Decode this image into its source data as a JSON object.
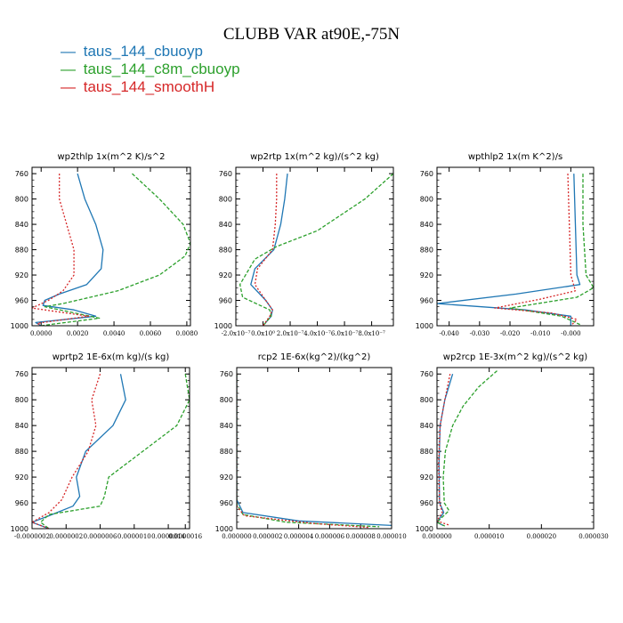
{
  "title": "CLUBB VAR at90E,-75N",
  "legend": [
    {
      "symbol": "—",
      "label": "taus_144_cbuoyp",
      "color": "#1f77b4"
    },
    {
      "symbol": "—",
      "label": "taus_144_c8m_cbuoyp",
      "color": "#2ca02c"
    },
    {
      "symbol": "—",
      "label": "taus_144_smoothH",
      "color": "#d62728"
    }
  ],
  "chart_data": [
    {
      "type": "line",
      "title": "wp2thlp   1x(m^2 K)/s^2",
      "xlim": [
        -0.0005,
        0.0082
      ],
      "ylim": [
        1000,
        750
      ],
      "yticks": [
        760,
        800,
        840,
        880,
        920,
        960,
        1000
      ],
      "xticks": [
        0.0,
        0.002,
        0.004,
        0.006,
        0.008
      ],
      "xtick_labels": [
        "0.0000",
        "0.0020",
        "0.0040",
        "0.0060",
        "0.0080"
      ],
      "series": [
        {
          "name": "taus_144_cbuoyp",
          "color": "#1f77b4",
          "dash": "",
          "points": [
            [
              0.002,
              760
            ],
            [
              0.0024,
              800
            ],
            [
              0.003,
              840
            ],
            [
              0.0034,
              880
            ],
            [
              0.0033,
              910
            ],
            [
              0.0025,
              935
            ],
            [
              0.001,
              950
            ],
            [
              0.0002,
              960
            ],
            [
              0.0001,
              968
            ],
            [
              0.0018,
              975
            ],
            [
              0.003,
              985
            ],
            [
              -0.0003,
              995
            ],
            [
              0.0,
              1000
            ]
          ]
        },
        {
          "name": "taus_144_c8m_cbuoyp",
          "color": "#2ca02c",
          "dash": "4,2",
          "points": [
            [
              0.005,
              760
            ],
            [
              0.0065,
              800
            ],
            [
              0.0078,
              840
            ],
            [
              0.0082,
              870
            ],
            [
              0.0079,
              890
            ],
            [
              0.0065,
              920
            ],
            [
              0.0042,
              945
            ],
            [
              0.0012,
              965
            ],
            [
              0.0002,
              970
            ],
            [
              0.0032,
              988
            ],
            [
              0.0005,
              998
            ],
            [
              0.0,
              1000
            ]
          ]
        },
        {
          "name": "taus_144_smoothH",
          "color": "#d62728",
          "dash": "2,2",
          "points": [
            [
              0.001,
              760
            ],
            [
              0.001,
              800
            ],
            [
              0.0014,
              840
            ],
            [
              0.0018,
              880
            ],
            [
              0.0018,
              920
            ],
            [
              0.0012,
              945
            ],
            [
              0.0004,
              960
            ],
            [
              -0.0005,
              972
            ],
            [
              0.0026,
              985
            ],
            [
              -0.0002,
              996
            ],
            [
              0.0,
              1000
            ]
          ]
        }
      ]
    },
    {
      "type": "line",
      "title": "wp2rtp   1x(m^2 kg)/(s^2 kg)",
      "xlim": [
        -2e-07,
        9.6e-07
      ],
      "ylim": [
        1000,
        750
      ],
      "yticks": [
        760,
        800,
        840,
        880,
        920,
        960,
        1000
      ],
      "xticks": [
        -2e-07,
        0.0,
        2e-07,
        4e-07,
        6e-07,
        8e-07
      ],
      "xtick_labels": [
        "-2.0x10⁻⁷",
        "0.0x10⁰",
        "2.0x10⁻⁷",
        "4.0x10⁻⁷",
        "6.0x10⁻⁷",
        "8.0x10⁻⁷"
      ],
      "series": [
        {
          "name": "taus_144_cbuoyp",
          "color": "#1f77b4",
          "dash": "",
          "points": [
            [
              1.8e-07,
              760
            ],
            [
              1.6e-07,
              800
            ],
            [
              1.3e-07,
              840
            ],
            [
              8e-08,
              880
            ],
            [
              -6e-08,
              910
            ],
            [
              -9e-08,
              935
            ],
            [
              2e-08,
              960
            ],
            [
              7e-08,
              975
            ],
            [
              6e-08,
              985
            ],
            [
              0.0,
              1000
            ]
          ]
        },
        {
          "name": "taus_144_c8m_cbuoyp",
          "color": "#2ca02c",
          "dash": "4,2",
          "points": [
            [
              9.6e-07,
              760
            ],
            [
              7.5e-07,
              800
            ],
            [
              4e-07,
              850
            ],
            [
              1e-07,
              875
            ],
            [
              -6e-08,
              895
            ],
            [
              -1.7e-07,
              935
            ],
            [
              -1.5e-07,
              955
            ],
            [
              5e-08,
              975
            ],
            [
              6e-08,
              985
            ],
            [
              0.0,
              1000
            ]
          ]
        },
        {
          "name": "taus_144_smoothH",
          "color": "#d62728",
          "dash": "2,2",
          "points": [
            [
              1e-07,
              760
            ],
            [
              1e-07,
              800
            ],
            [
              9e-08,
              840
            ],
            [
              7e-08,
              880
            ],
            [
              -4e-08,
              910
            ],
            [
              -6e-08,
              935
            ],
            [
              2e-08,
              960
            ],
            [
              7e-08,
              975
            ],
            [
              5e-08,
              985
            ],
            [
              0.0,
              1000
            ]
          ]
        }
      ]
    },
    {
      "type": "line",
      "title": "wpthlp2   1x(m K^2)/s",
      "xlim": [
        -0.044,
        0.0075
      ],
      "ylim": [
        1000,
        750
      ],
      "yticks": [
        760,
        800,
        840,
        880,
        920,
        960,
        1000
      ],
      "xticks": [
        -0.04,
        -0.03,
        -0.02,
        -0.01,
        0.0
      ],
      "xtick_labels": [
        "-0.040",
        "-0.030",
        "-0.020",
        "-0.010",
        "-0.000"
      ],
      "series": [
        {
          "name": "taus_144_cbuoyp",
          "color": "#1f77b4",
          "dash": "",
          "points": [
            [
              0.001,
              760
            ],
            [
              0.0015,
              840
            ],
            [
              0.002,
              920
            ],
            [
              0.003,
              935
            ],
            [
              -0.018,
              950
            ],
            [
              -0.044,
              965
            ],
            [
              -0.015,
              975
            ],
            [
              0.0,
              985
            ],
            [
              0.0,
              1000
            ]
          ]
        },
        {
          "name": "taus_144_c8m_cbuoyp",
          "color": "#2ca02c",
          "dash": "4,2",
          "points": [
            [
              0.004,
              760
            ],
            [
              0.004,
              840
            ],
            [
              0.005,
              920
            ],
            [
              0.0075,
              940
            ],
            [
              0.002,
              955
            ],
            [
              -0.02,
              972
            ],
            [
              -0.003,
              985
            ],
            [
              0.003,
              998
            ]
          ]
        },
        {
          "name": "taus_144_smoothH",
          "color": "#d62728",
          "dash": "2,2",
          "points": [
            [
              -0.001,
              760
            ],
            [
              -0.0005,
              840
            ],
            [
              0.0,
              920
            ],
            [
              0.0015,
              945
            ],
            [
              -0.01,
              958
            ],
            [
              -0.025,
              972
            ],
            [
              -0.006,
              980
            ],
            [
              0.002,
              990
            ],
            [
              0.0,
              1000
            ]
          ]
        }
      ]
    },
    {
      "type": "line",
      "title": "wprtp2   1E-6x(m kg)/(s kg)",
      "xlim": [
        -2e-07,
        1.65e-06
      ],
      "ylim": [
        1000,
        750
      ],
      "yticks": [
        760,
        800,
        840,
        880,
        920,
        960,
        1000
      ],
      "xticks": [
        -2e-07,
        2e-07,
        6e-07,
        1e-06,
        1.4e-06,
        1.6e-06
      ],
      "xtick_labels": [
        "-0.0000002",
        "0.0000002",
        "0.0000006",
        "0.0000010",
        "0.0000014",
        "0.0000016"
      ],
      "series": [
        {
          "name": "taus_144_cbuoyp",
          "color": "#1f77b4",
          "dash": "",
          "points": [
            [
              8.4e-07,
              760
            ],
            [
              9e-07,
              800
            ],
            [
              7.5e-07,
              840
            ],
            [
              4.3e-07,
              880
            ],
            [
              3.2e-07,
              920
            ],
            [
              3.6e-07,
              950
            ],
            [
              2.8e-07,
              965
            ],
            [
              0.0,
              980
            ],
            [
              -2e-07,
              990
            ],
            [
              0.0,
              1000
            ]
          ]
        },
        {
          "name": "taus_144_c8m_cbuoyp",
          "color": "#2ca02c",
          "dash": "4,2",
          "points": [
            [
              1.6e-06,
              760
            ],
            [
              1.65e-06,
              800
            ],
            [
              1.5e-06,
              840
            ],
            [
              1.1e-06,
              880
            ],
            [
              7e-07,
              920
            ],
            [
              6.5e-07,
              950
            ],
            [
              6e-07,
              965
            ],
            [
              0.0,
              978
            ],
            [
              -1e-07,
              990
            ],
            [
              0.0,
              1000
            ]
          ]
        },
        {
          "name": "taus_144_smoothH",
          "color": "#d62728",
          "dash": "2,2",
          "points": [
            [
              6e-07,
              760
            ],
            [
              5e-07,
              800
            ],
            [
              5.5e-07,
              840
            ],
            [
              4.6e-07,
              880
            ],
            [
              2.7e-07,
              920
            ],
            [
              1.5e-07,
              955
            ],
            [
              0.0,
              975
            ],
            [
              -2e-07,
              990
            ],
            [
              0.0,
              1000
            ]
          ]
        }
      ]
    },
    {
      "type": "line",
      "title": "rcp2   1E-6x(kg^2)/(kg^2)",
      "xlim": [
        0.0,
        1e-05
      ],
      "ylim": [
        1000,
        750
      ],
      "yticks": [
        760,
        800,
        840,
        880,
        920,
        960,
        1000
      ],
      "xticks": [
        0.0,
        2e-06,
        4e-06,
        6e-06,
        8e-06,
        1e-05
      ],
      "xtick_labels": [
        "0.000000",
        "0.000002",
        "0.000004",
        "0.000006",
        "0.000008",
        "0.000010"
      ],
      "series": [
        {
          "name": "taus_144_cbuoyp",
          "color": "#1f77b4",
          "dash": "",
          "points": [
            [
              0.0,
              760
            ],
            [
              0.0,
              955
            ],
            [
              4e-07,
              975
            ],
            [
              4e-06,
              988
            ],
            [
              1e-05,
              995
            ]
          ]
        },
        {
          "name": "taus_144_c8m_cbuoyp",
          "color": "#2ca02c",
          "dash": "4,2",
          "points": [
            [
              0.0,
              760
            ],
            [
              0.0,
              962
            ],
            [
              4e-07,
              978
            ],
            [
              3.2e-06,
              990
            ],
            [
              9.2e-06,
              997
            ]
          ]
        },
        {
          "name": "taus_144_smoothH",
          "color": "#d62728",
          "dash": "2,2",
          "points": [
            [
              0.0,
              760
            ],
            [
              0.0,
              965
            ],
            [
              5e-07,
              980
            ],
            [
              5e-06,
              992
            ],
            [
              8.5e-06,
              998
            ]
          ]
        }
      ]
    },
    {
      "type": "line",
      "title": "wp2rcp   1E-3x(m^2 kg)/(s^2 kg)",
      "xlim": [
        0.0,
        3e-05
      ],
      "ylim": [
        1000,
        750
      ],
      "yticks": [
        760,
        800,
        840,
        880,
        920,
        960,
        1000
      ],
      "xticks": [
        0.0,
        1e-05,
        2e-05,
        3e-05
      ],
      "xtick_labels": [
        "0.000000",
        "0.000010",
        "0.000020",
        "0.000030"
      ],
      "series": [
        {
          "name": "taus_144_cbuoyp",
          "color": "#1f77b4",
          "dash": "",
          "points": [
            [
              3e-06,
              760
            ],
            [
              1.5e-06,
              800
            ],
            [
              6e-07,
              840
            ],
            [
              4e-07,
              900
            ],
            [
              5e-07,
              960
            ],
            [
              1.3e-06,
              975
            ],
            [
              0.0,
              990
            ],
            [
              1.2e-06,
              995
            ]
          ]
        },
        {
          "name": "taus_144_c8m_cbuoyp",
          "color": "#2ca02c",
          "dash": "4,2",
          "points": [
            [
              1.15e-05,
              755
            ],
            [
              8e-06,
              780
            ],
            [
              5e-06,
              810
            ],
            [
              3e-06,
              840
            ],
            [
              1.6e-06,
              880
            ],
            [
              1.2e-06,
              920
            ],
            [
              1.4e-06,
              960
            ],
            [
              2.3e-06,
              972
            ],
            [
              0.0,
              990
            ],
            [
              1.5e-06,
              996
            ]
          ]
        },
        {
          "name": "taus_144_smoothH",
          "color": "#d62728",
          "dash": "2,2",
          "points": [
            [
              2.5e-06,
              760
            ],
            [
              1.5e-06,
              800
            ],
            [
              6e-07,
              840
            ],
            [
              3e-07,
              900
            ],
            [
              5e-07,
              960
            ],
            [
              1e-06,
              975
            ],
            [
              0.0,
              988
            ],
            [
              2.5e-06,
              995
            ]
          ]
        }
      ]
    }
  ]
}
